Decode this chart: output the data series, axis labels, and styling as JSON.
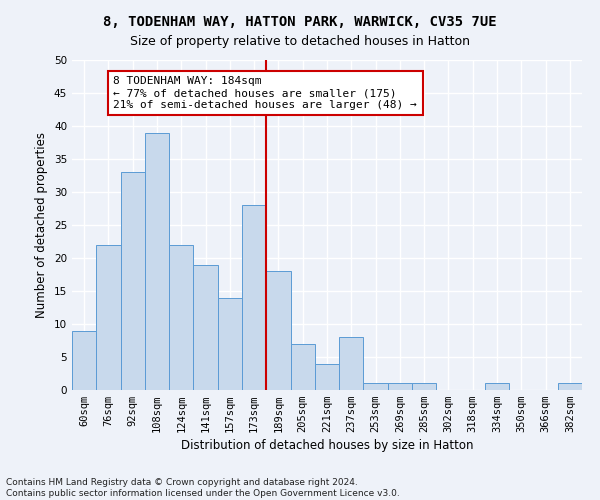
{
  "title1": "8, TODENHAM WAY, HATTON PARK, WARWICK, CV35 7UE",
  "title2": "Size of property relative to detached houses in Hatton",
  "xlabel": "Distribution of detached houses by size in Hatton",
  "ylabel": "Number of detached properties",
  "footnote": "Contains HM Land Registry data © Crown copyright and database right 2024.\nContains public sector information licensed under the Open Government Licence v3.0.",
  "bin_labels": [
    "60sqm",
    "76sqm",
    "92sqm",
    "108sqm",
    "124sqm",
    "141sqm",
    "157sqm",
    "173sqm",
    "189sqm",
    "205sqm",
    "221sqm",
    "237sqm",
    "253sqm",
    "269sqm",
    "285sqm",
    "302sqm",
    "318sqm",
    "334sqm",
    "350sqm",
    "366sqm",
    "382sqm"
  ],
  "bar_heights": [
    9,
    22,
    33,
    39,
    22,
    19,
    14,
    28,
    18,
    7,
    4,
    8,
    1,
    1,
    1,
    0,
    0,
    1,
    0,
    0,
    1
  ],
  "bar_color": "#c8d9ec",
  "bar_edge_color": "#5b9bd5",
  "vline_index": 7.5,
  "annotation_text": "8 TODENHAM WAY: 184sqm\n← 77% of detached houses are smaller (175)\n21% of semi-detached houses are larger (48) →",
  "annotation_box_color": "#ffffff",
  "annotation_box_edge_color": "#cc0000",
  "ylim": [
    0,
    50
  ],
  "yticks": [
    0,
    5,
    10,
    15,
    20,
    25,
    30,
    35,
    40,
    45,
    50
  ],
  "background_color": "#eef2f9",
  "grid_color": "#ffffff",
  "title1_fontsize": 10,
  "title2_fontsize": 9,
  "axis_label_fontsize": 8.5,
  "tick_fontsize": 7.5,
  "annotation_fontsize": 8,
  "footnote_fontsize": 6.5
}
